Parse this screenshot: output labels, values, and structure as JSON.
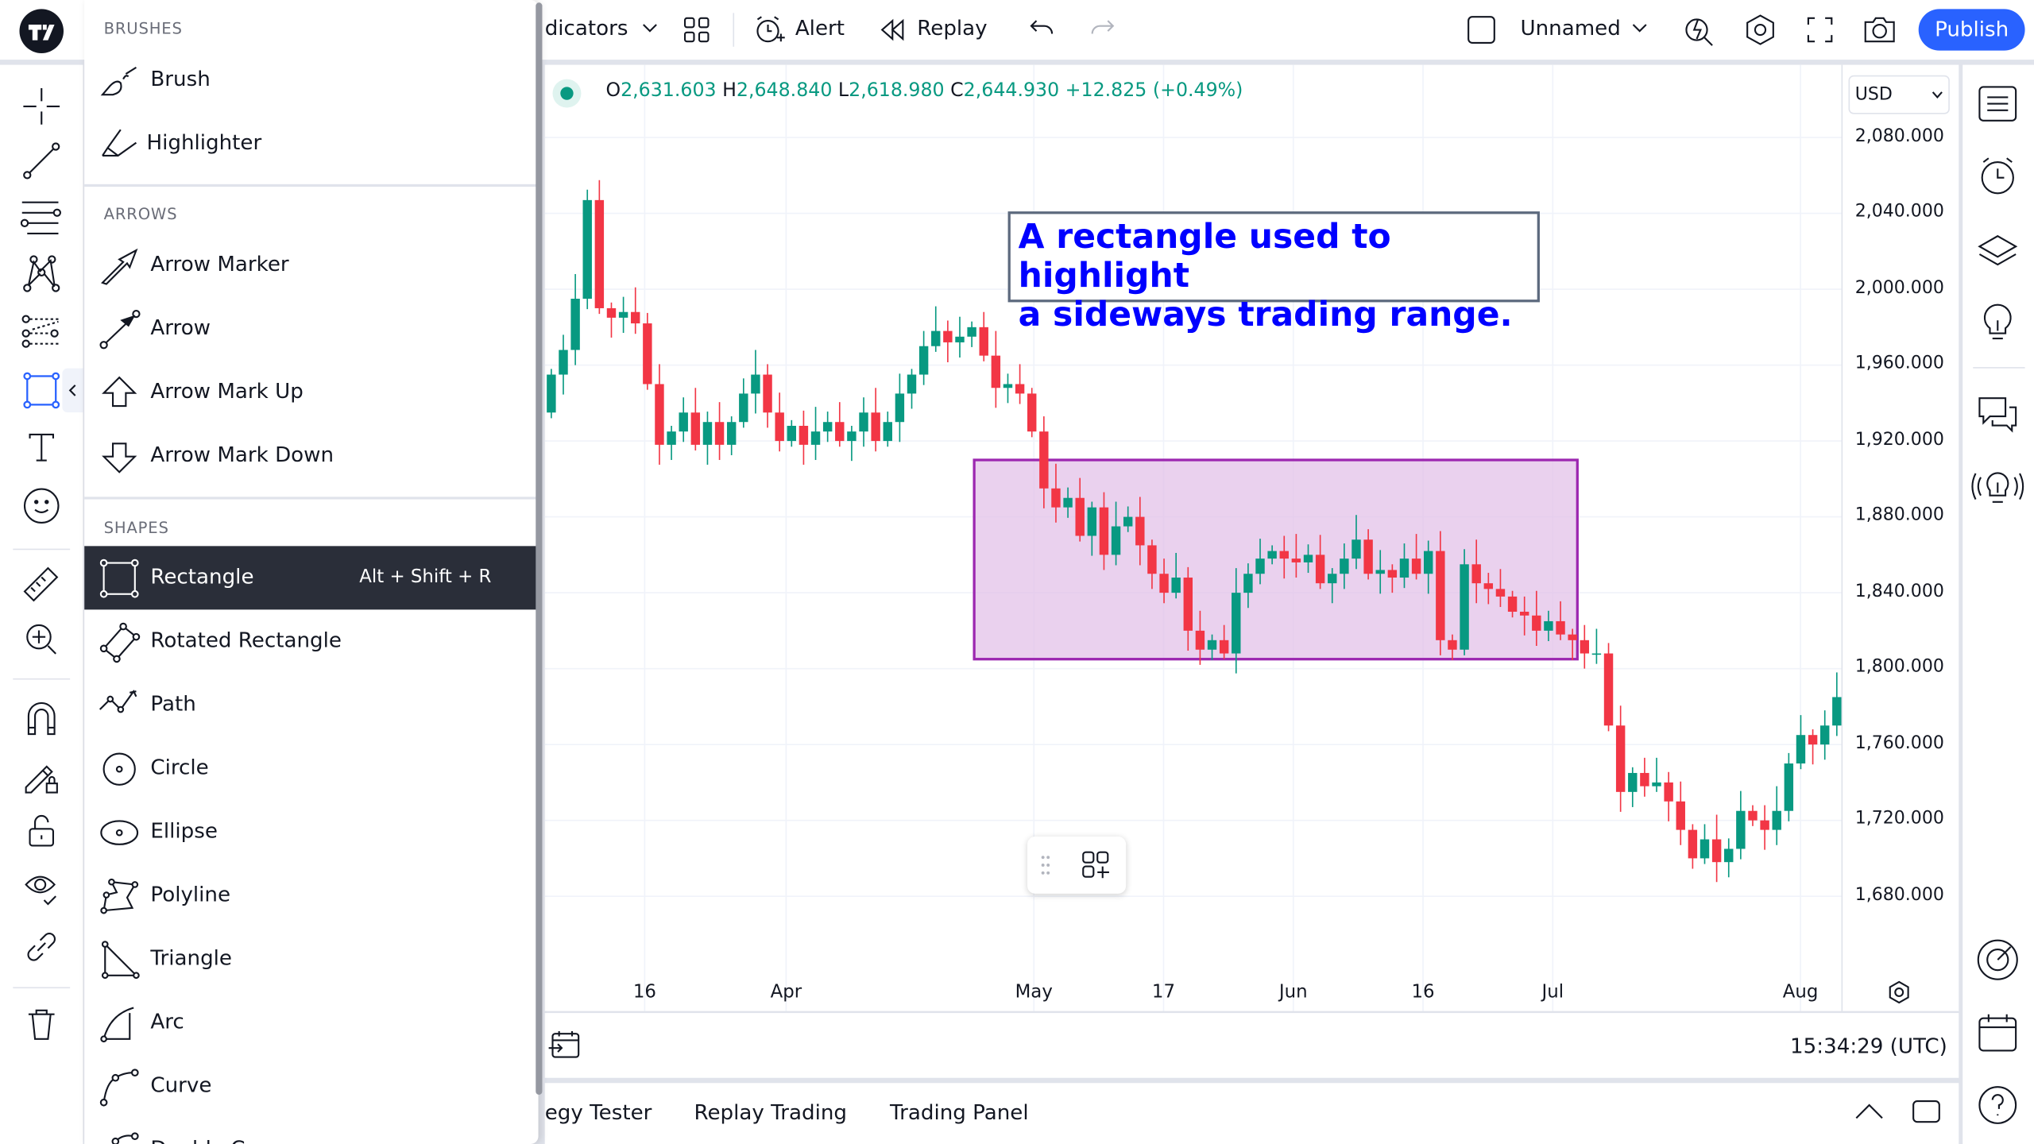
{
  "topbar": {
    "indicators_label": "dicators",
    "alert_label": "Alert",
    "replay_label": "Replay",
    "layout_name": "Unnamed",
    "publish_label": "Publish"
  },
  "legend": {
    "o_key": "O",
    "o": "2,631.603",
    "h_key": "H",
    "h": "2,648.840",
    "l_key": "L",
    "l": "2,618.980",
    "c_key": "C",
    "c": "2,644.930",
    "change": "+12.825 (+0.49%)"
  },
  "currency": "USD",
  "menu": {
    "brushes_header": "BRUSHES",
    "brushes": [
      {
        "label": "Brush",
        "icon": "brush-icon"
      },
      {
        "label": "Highlighter",
        "icon": "highlighter-icon"
      }
    ],
    "arrows_header": "ARROWS",
    "arrows": [
      {
        "label": "Arrow Marker"
      },
      {
        "label": "Arrow"
      },
      {
        "label": "Arrow Mark Up"
      },
      {
        "label": "Arrow Mark Down"
      }
    ],
    "shapes_header": "SHAPES",
    "shapes": [
      {
        "label": "Rectangle",
        "shortcut": "Alt + Shift + R",
        "selected": true
      },
      {
        "label": "Rotated Rectangle"
      },
      {
        "label": "Path"
      },
      {
        "label": "Circle"
      },
      {
        "label": "Ellipse"
      },
      {
        "label": "Polyline"
      },
      {
        "label": "Triangle"
      },
      {
        "label": "Arc"
      },
      {
        "label": "Curve"
      },
      {
        "label": "Double Curve"
      }
    ]
  },
  "annotation": {
    "line1": "A rectangle used to highlight",
    "line2": "a sideways trading range."
  },
  "colors": {
    "up": "#089981",
    "down": "#f23645",
    "accent": "#2962ff",
    "annotation_text": "#0000ff",
    "range_fill": "#e1bee7",
    "range_border": "#9c27b0",
    "menu_selected": "#2a2e39"
  },
  "chart_data": {
    "type": "candlestick",
    "price_ticks": [
      "2,080.000",
      "2,040.000",
      "2,000.000",
      "1,960.000",
      "1,920.000",
      "1,880.000",
      "1,840.000",
      "1,800.000",
      "1,760.000",
      "1,720.000",
      "1,680.000"
    ],
    "ylim": [
      1680,
      2080
    ],
    "time_ticks": [
      "16",
      "Apr",
      "May",
      "17",
      "Jun",
      "16",
      "Jul",
      "Aug"
    ],
    "first_open": 1935,
    "closes": [
      1955,
      1968,
      1995,
      2047,
      1990,
      1985,
      1988,
      1982,
      1950,
      1918,
      1925,
      1935,
      1918,
      1930,
      1918,
      1930,
      1945,
      1955,
      1935,
      1920,
      1928,
      1918,
      1925,
      1930,
      1920,
      1925,
      1935,
      1920,
      1930,
      1945,
      1955,
      1970,
      1978,
      1972,
      1975,
      1980,
      1965,
      1948,
      1950,
      1945,
      1925,
      1895,
      1885,
      1890,
      1870,
      1885,
      1860,
      1875,
      1880,
      1865,
      1850,
      1840,
      1848,
      1820,
      1810,
      1815,
      1808,
      1840,
      1850,
      1858,
      1862,
      1858,
      1856,
      1860,
      1845,
      1850,
      1858,
      1868,
      1850,
      1852,
      1848,
      1858,
      1850,
      1862,
      1815,
      1810,
      1855,
      1845,
      1842,
      1838,
      1830,
      1828,
      1820,
      1825,
      1818,
      1815,
      1808,
      1808,
      1770,
      1735,
      1745,
      1738,
      1740,
      1730,
      1715,
      1700,
      1710,
      1698,
      1705,
      1725,
      1720,
      1715,
      1725,
      1750,
      1765,
      1760,
      1770,
      1785
    ],
    "range_rectangle": {
      "top_price": 1910,
      "bottom_price": 1805
    },
    "grid": true
  },
  "timebar": {
    "clock": "15:34:29 (UTC)"
  },
  "bottom_tabs": [
    "egy Tester",
    "Replay Trading",
    "Trading Panel"
  ]
}
